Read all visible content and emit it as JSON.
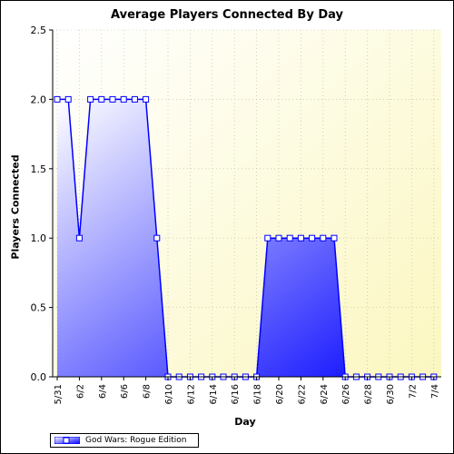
{
  "chart_data": {
    "type": "area",
    "title": "Average Players Connected By Day",
    "xlabel": "Day",
    "ylabel": "Players Connected",
    "ylim": [
      0,
      2.5
    ],
    "yticks": [
      "0.0",
      "0.5",
      "1.0",
      "1.5",
      "2.0",
      "2.5"
    ],
    "xticks": [
      "5/31",
      "6/2",
      "6/4",
      "6/6",
      "6/8",
      "6/10",
      "6/12",
      "6/14",
      "6/16",
      "6/18",
      "6/20",
      "6/22",
      "6/24",
      "6/26",
      "6/28",
      "6/30",
      "7/2",
      "7/4"
    ],
    "grid": true,
    "legend_position": "bottom-left",
    "series": [
      {
        "name": "God Wars: Rogue Edition",
        "color": "#0000ff",
        "x": [
          "5/31",
          "6/1",
          "6/2",
          "6/3",
          "6/4",
          "6/5",
          "6/6",
          "6/7",
          "6/8",
          "6/9",
          "6/10",
          "6/11",
          "6/12",
          "6/13",
          "6/14",
          "6/15",
          "6/16",
          "6/17",
          "6/18",
          "6/19",
          "6/20",
          "6/21",
          "6/22",
          "6/23",
          "6/24",
          "6/25",
          "6/26",
          "6/27",
          "6/28",
          "6/29",
          "6/30",
          "7/1",
          "7/2",
          "7/3",
          "7/4"
        ],
        "values": [
          2,
          2,
          1,
          2,
          2,
          2,
          2,
          2,
          2,
          1,
          0,
          0,
          0,
          0,
          0,
          0,
          0,
          0,
          0,
          1,
          1,
          1,
          1,
          1,
          1,
          1,
          0,
          0,
          0,
          0,
          0,
          0,
          0,
          0,
          0
        ]
      }
    ]
  }
}
